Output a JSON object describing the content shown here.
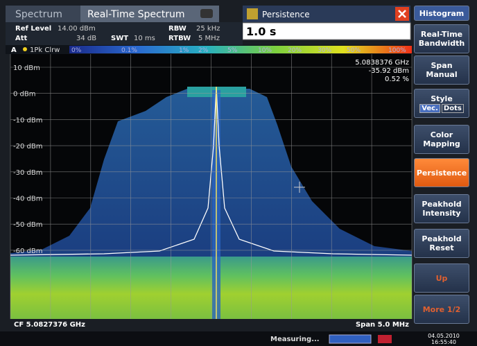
{
  "tabs": [
    "Spectrum",
    "Real-Time Spectrum"
  ],
  "dialog": {
    "title": "Persistence",
    "input": "1.0 s"
  },
  "header": {
    "ref_level_label": "Ref Level",
    "ref_level": "14.00 dBm",
    "att_label": "Att",
    "att": "34 dB",
    "swt_label": "SWT",
    "swt": "10 ms",
    "rbw_label": "RBW",
    "rbw": "25 kHz",
    "rtbw_label": "RTBW",
    "rtbw": "5 MHz"
  },
  "trace": {
    "id": "A",
    "mode": "1Pk Clrw"
  },
  "color_scale": [
    "0%",
    "0.1%",
    "1%",
    "2%",
    "5%",
    "10%",
    "20%",
    "30%",
    "50%",
    "100%"
  ],
  "marker": {
    "freq": "5.0838376 GHz",
    "level": "-35.92 dBm",
    "persistence": "0.52 %"
  },
  "y_labels": [
    "10 dBm",
    "0 dBm",
    "-10 dBm",
    "-20 dBm",
    "-30 dBm",
    "-40 dBm",
    "-50 dBm",
    "-60 dBm"
  ],
  "footer": {
    "center": "CF 5.0827376 GHz",
    "span": "Span 5.0 MHz"
  },
  "status": {
    "text": "Measuring...",
    "date": "04.05.2010",
    "time": "16:55:40"
  },
  "softkeys": {
    "title": "Histogram",
    "items": [
      "Real-Time Bandwidth",
      "Span Manual",
      "Style",
      "Color Mapping",
      "Persistence",
      "Peakhold Intensity",
      "Peakhold Reset",
      "Up",
      "More 1/2"
    ],
    "style_options": [
      "Vec.",
      "Dots"
    ]
  }
}
